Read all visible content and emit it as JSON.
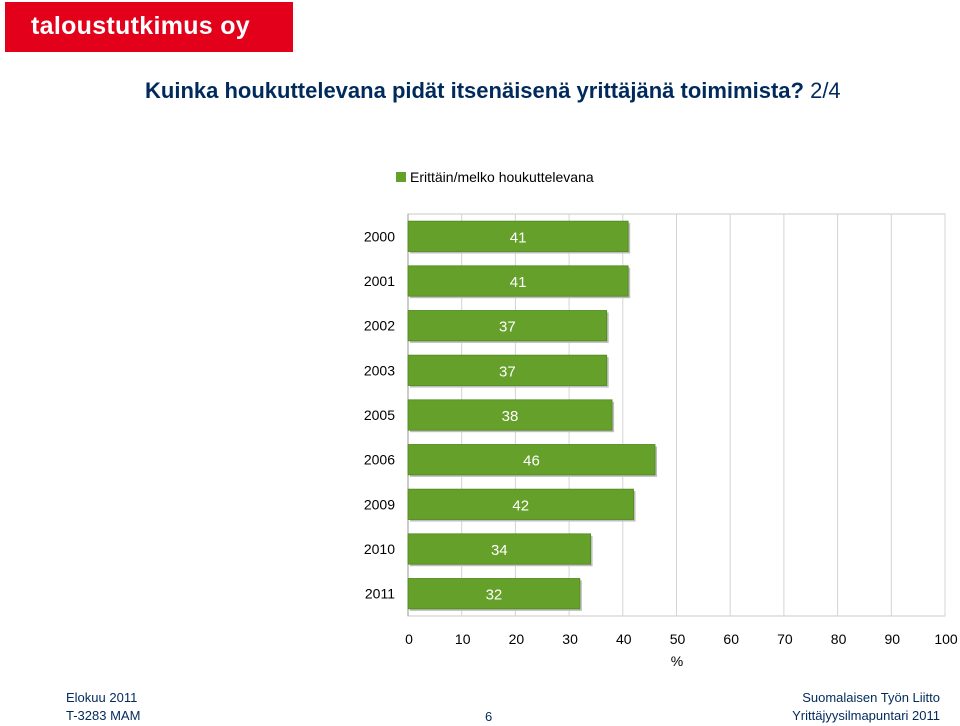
{
  "brand": {
    "logo_text": "taloustutkimus oy",
    "color": "#e2001a"
  },
  "title": {
    "main": "Kuinka houkuttelevana pidät itsenäisenä yrittäjänä toimimista?",
    "part": "2/4"
  },
  "footer": {
    "left_line1": "Elokuu 2011",
    "left_line2": "T-3283 MAM",
    "right_line1": "Suomalaisen Työn Liitto",
    "right_line2": "Yrittäjyysilmapuntari 2011",
    "page_number": "6"
  },
  "chart_data": {
    "type": "bar",
    "orientation": "horizontal",
    "categories": [
      "2000",
      "2001",
      "2002",
      "2003",
      "2005",
      "2006",
      "2009",
      "2010",
      "2011"
    ],
    "series": [
      {
        "name": "Erittäin/melko houkuttelevana",
        "values": [
          41,
          41,
          37,
          37,
          38,
          46,
          42,
          34,
          32
        ],
        "color": "#65a02a"
      }
    ],
    "xlim": [
      0,
      100
    ],
    "xticks": [
      0,
      10,
      20,
      30,
      40,
      50,
      60,
      70,
      80,
      90,
      100
    ],
    "xlabel": "%",
    "grid": true,
    "legend": "top-left"
  }
}
